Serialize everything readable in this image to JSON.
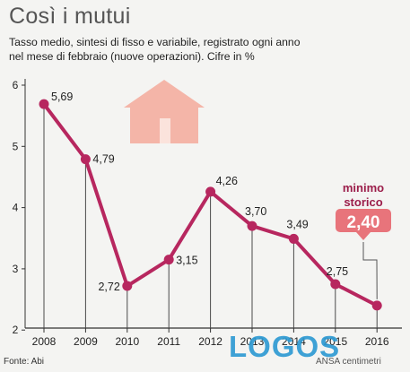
{
  "title": "Così i mutui",
  "subtitle_line1": "Tasso medio, sintesi di fisso e variabile, registrato ogni anno",
  "subtitle_line2": "nel mese di febbraio (nuove operazioni). Cifre in %",
  "source": "Fonte: Abi",
  "credit": "ANSA centimetri",
  "watermark": "LOGOS",
  "callout": {
    "line1": "minimo",
    "line2": "storico",
    "value": "2,40"
  },
  "icon": "house-icon",
  "colors": {
    "line": "#b7275f",
    "callout_text": "#9b1d4a",
    "callout_value_bg": "#e8747b",
    "house": "#f4b5a8",
    "watermark": "#2f9bd3"
  },
  "chart_data": {
    "type": "line",
    "x": [
      "2008",
      "2009",
      "2010",
      "2011",
      "2012",
      "2013",
      "2014",
      "2015",
      "2016"
    ],
    "values": [
      5.69,
      4.79,
      2.72,
      3.15,
      4.26,
      3.7,
      3.49,
      2.75,
      2.4
    ],
    "data_labels": [
      "5,69",
      "4,79",
      "2,72",
      "3,15",
      "4,26",
      "3,70",
      "3,49",
      "2,75",
      "2,40"
    ],
    "y_ticks": [
      2,
      3,
      4,
      5,
      6
    ],
    "ylim": [
      2,
      6
    ],
    "grid": "vertical drop lines"
  }
}
